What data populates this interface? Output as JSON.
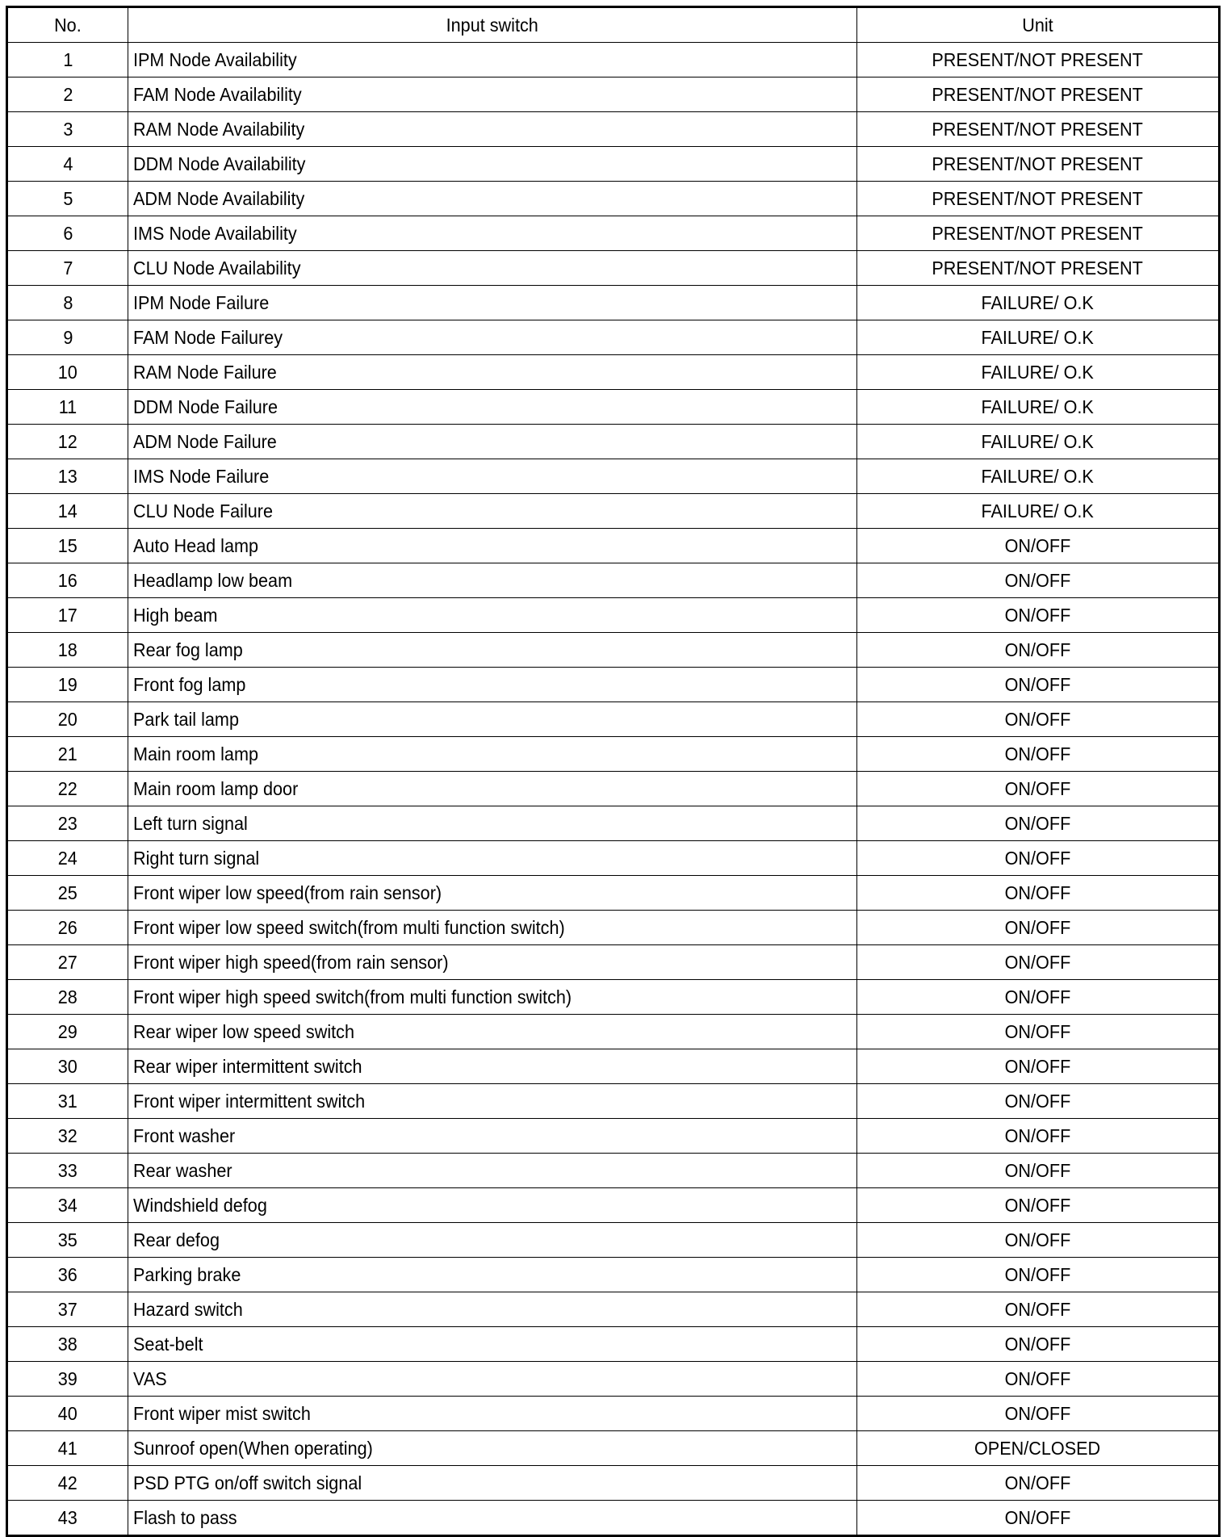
{
  "table": {
    "headers": {
      "no": "No.",
      "switch": "Input switch",
      "unit": "Unit"
    },
    "rows": [
      {
        "no": "1",
        "switch": "IPM Node Availability",
        "unit": "PRESENT/NOT PRESENT"
      },
      {
        "no": "2",
        "switch": "FAM Node Availability",
        "unit": "PRESENT/NOT PRESENT"
      },
      {
        "no": "3",
        "switch": "RAM Node Availability",
        "unit": "PRESENT/NOT PRESENT"
      },
      {
        "no": "4",
        "switch": "DDM Node Availability",
        "unit": "PRESENT/NOT PRESENT"
      },
      {
        "no": "5",
        "switch": "ADM Node Availability",
        "unit": "PRESENT/NOT PRESENT"
      },
      {
        "no": "6",
        "switch": "IMS Node Availability",
        "unit": "PRESENT/NOT PRESENT"
      },
      {
        "no": "7",
        "switch": "CLU Node Availability",
        "unit": "PRESENT/NOT PRESENT"
      },
      {
        "no": "8",
        "switch": "IPM Node Failure",
        "unit": "FAILURE/ O.K"
      },
      {
        "no": "9",
        "switch": "FAM Node Failurey",
        "unit": "FAILURE/ O.K"
      },
      {
        "no": "10",
        "switch": "RAM Node Failure",
        "unit": "FAILURE/ O.K"
      },
      {
        "no": "11",
        "switch": "DDM Node Failure",
        "unit": "FAILURE/ O.K"
      },
      {
        "no": "12",
        "switch": "ADM Node Failure",
        "unit": "FAILURE/ O.K"
      },
      {
        "no": "13",
        "switch": "IMS Node Failure",
        "unit": "FAILURE/ O.K"
      },
      {
        "no": "14",
        "switch": "CLU Node Failure",
        "unit": "FAILURE/ O.K"
      },
      {
        "no": "15",
        "switch": "Auto Head lamp",
        "unit": "ON/OFF"
      },
      {
        "no": "16",
        "switch": "Headlamp low beam",
        "unit": "ON/OFF"
      },
      {
        "no": "17",
        "switch": "High beam",
        "unit": "ON/OFF"
      },
      {
        "no": "18",
        "switch": "Rear fog lamp",
        "unit": "ON/OFF"
      },
      {
        "no": "19",
        "switch": "Front fog lamp",
        "unit": "ON/OFF"
      },
      {
        "no": "20",
        "switch": "Park tail lamp",
        "unit": "ON/OFF"
      },
      {
        "no": "21",
        "switch": "Main room lamp",
        "unit": "ON/OFF"
      },
      {
        "no": "22",
        "switch": "Main room lamp door",
        "unit": "ON/OFF"
      },
      {
        "no": "23",
        "switch": "Left turn signal",
        "unit": "ON/OFF"
      },
      {
        "no": "24",
        "switch": "Right turn signal",
        "unit": "ON/OFF"
      },
      {
        "no": "25",
        "switch": "Front wiper low speed(from rain sensor)",
        "unit": "ON/OFF"
      },
      {
        "no": "26",
        "switch": "Front wiper low speed switch(from multi function switch)",
        "unit": "ON/OFF"
      },
      {
        "no": "27",
        "switch": "Front wiper high speed(from rain sensor)",
        "unit": "ON/OFF"
      },
      {
        "no": "28",
        "switch": "Front wiper high speed switch(from multi function switch)",
        "unit": "ON/OFF"
      },
      {
        "no": "29",
        "switch": "Rear wiper low speed switch",
        "unit": "ON/OFF"
      },
      {
        "no": "30",
        "switch": "Rear wiper intermittent switch",
        "unit": "ON/OFF"
      },
      {
        "no": "31",
        "switch": "Front wiper intermittent switch",
        "unit": "ON/OFF"
      },
      {
        "no": "32",
        "switch": "Front washer",
        "unit": "ON/OFF"
      },
      {
        "no": "33",
        "switch": "Rear washer",
        "unit": "ON/OFF"
      },
      {
        "no": "34",
        "switch": "Windshield defog",
        "unit": "ON/OFF"
      },
      {
        "no": "35",
        "switch": "Rear defog",
        "unit": "ON/OFF"
      },
      {
        "no": "36",
        "switch": "Parking brake",
        "unit": "ON/OFF"
      },
      {
        "no": "37",
        "switch": "Hazard switch",
        "unit": "ON/OFF"
      },
      {
        "no": "38",
        "switch": "Seat-belt",
        "unit": "ON/OFF"
      },
      {
        "no": "39",
        "switch": "VAS",
        "unit": "ON/OFF"
      },
      {
        "no": "40",
        "switch": "Front wiper mist switch",
        "unit": "ON/OFF"
      },
      {
        "no": "41",
        "switch": "Sunroof open(When operating)",
        "unit": "OPEN/CLOSED"
      },
      {
        "no": "42",
        "switch": "PSD PTG on/off switch signal",
        "unit": "ON/OFF"
      },
      {
        "no": "43",
        "switch": "Flash to pass",
        "unit": "ON/OFF"
      }
    ]
  }
}
